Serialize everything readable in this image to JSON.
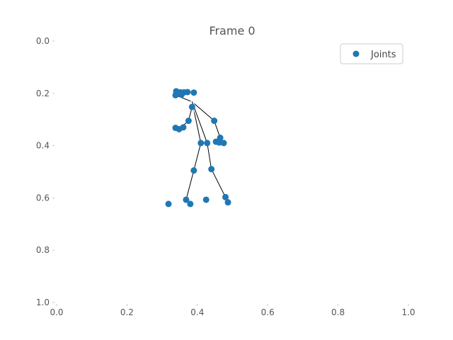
{
  "chart_data": {
    "type": "scatter",
    "title": "Frame 0",
    "xlabel": "",
    "ylabel": "",
    "xlim": [
      0.0,
      1.0
    ],
    "ylim": [
      1.0,
      0.0
    ],
    "y_inverted": true,
    "grid": false,
    "legend_placement": "top-right",
    "x_ticks": [
      "0.0",
      "0.2",
      "0.4",
      "0.6",
      "0.8",
      "1.0"
    ],
    "y_ticks": [
      "0.0",
      "0.2",
      "0.4",
      "0.6",
      "0.8",
      "1.0"
    ],
    "colors": {
      "points": "#1f77b4",
      "skeleton": "#000000"
    },
    "series": [
      {
        "name": "Joints",
        "points": [
          {
            "x": 0.34,
            "y": 0.192
          },
          {
            "x": 0.352,
            "y": 0.196
          },
          {
            "x": 0.362,
            "y": 0.196
          },
          {
            "x": 0.372,
            "y": 0.195
          },
          {
            "x": 0.39,
            "y": 0.197
          },
          {
            "x": 0.338,
            "y": 0.207
          },
          {
            "x": 0.355,
            "y": 0.205
          },
          {
            "x": 0.385,
            "y": 0.252
          },
          {
            "x": 0.375,
            "y": 0.305
          },
          {
            "x": 0.448,
            "y": 0.305
          },
          {
            "x": 0.338,
            "y": 0.332
          },
          {
            "x": 0.348,
            "y": 0.337
          },
          {
            "x": 0.36,
            "y": 0.33
          },
          {
            "x": 0.465,
            "y": 0.37
          },
          {
            "x": 0.453,
            "y": 0.385
          },
          {
            "x": 0.462,
            "y": 0.388
          },
          {
            "x": 0.475,
            "y": 0.39
          },
          {
            "x": 0.41,
            "y": 0.39
          },
          {
            "x": 0.428,
            "y": 0.39
          },
          {
            "x": 0.39,
            "y": 0.495
          },
          {
            "x": 0.44,
            "y": 0.49
          },
          {
            "x": 0.368,
            "y": 0.607
          },
          {
            "x": 0.425,
            "y": 0.607
          },
          {
            "x": 0.48,
            "y": 0.597
          },
          {
            "x": 0.318,
            "y": 0.623
          },
          {
            "x": 0.38,
            "y": 0.623
          },
          {
            "x": 0.487,
            "y": 0.617
          }
        ]
      }
    ],
    "skeleton": [
      [
        [
          0.34,
          0.192
        ],
        [
          0.372,
          0.195
        ]
      ],
      [
        [
          0.338,
          0.207
        ],
        [
          0.385,
          0.232
        ]
      ],
      [
        [
          0.385,
          0.232
        ],
        [
          0.385,
          0.252
        ]
      ],
      [
        [
          0.385,
          0.232
        ],
        [
          0.448,
          0.305
        ]
      ],
      [
        [
          0.448,
          0.305
        ],
        [
          0.465,
          0.37
        ]
      ],
      [
        [
          0.465,
          0.37
        ],
        [
          0.462,
          0.388
        ]
      ],
      [
        [
          0.385,
          0.252
        ],
        [
          0.375,
          0.305
        ]
      ],
      [
        [
          0.375,
          0.305
        ],
        [
          0.348,
          0.337
        ]
      ],
      [
        [
          0.385,
          0.232
        ],
        [
          0.41,
          0.39
        ]
      ],
      [
        [
          0.385,
          0.232
        ],
        [
          0.428,
          0.39
        ]
      ],
      [
        [
          0.41,
          0.39
        ],
        [
          0.428,
          0.39
        ]
      ],
      [
        [
          0.41,
          0.39
        ],
        [
          0.39,
          0.495
        ]
      ],
      [
        [
          0.39,
          0.495
        ],
        [
          0.368,
          0.607
        ]
      ],
      [
        [
          0.368,
          0.607
        ],
        [
          0.38,
          0.623
        ]
      ],
      [
        [
          0.428,
          0.39
        ],
        [
          0.44,
          0.49
        ]
      ],
      [
        [
          0.44,
          0.49
        ],
        [
          0.48,
          0.597
        ]
      ],
      [
        [
          0.48,
          0.597
        ],
        [
          0.487,
          0.617
        ]
      ]
    ]
  }
}
